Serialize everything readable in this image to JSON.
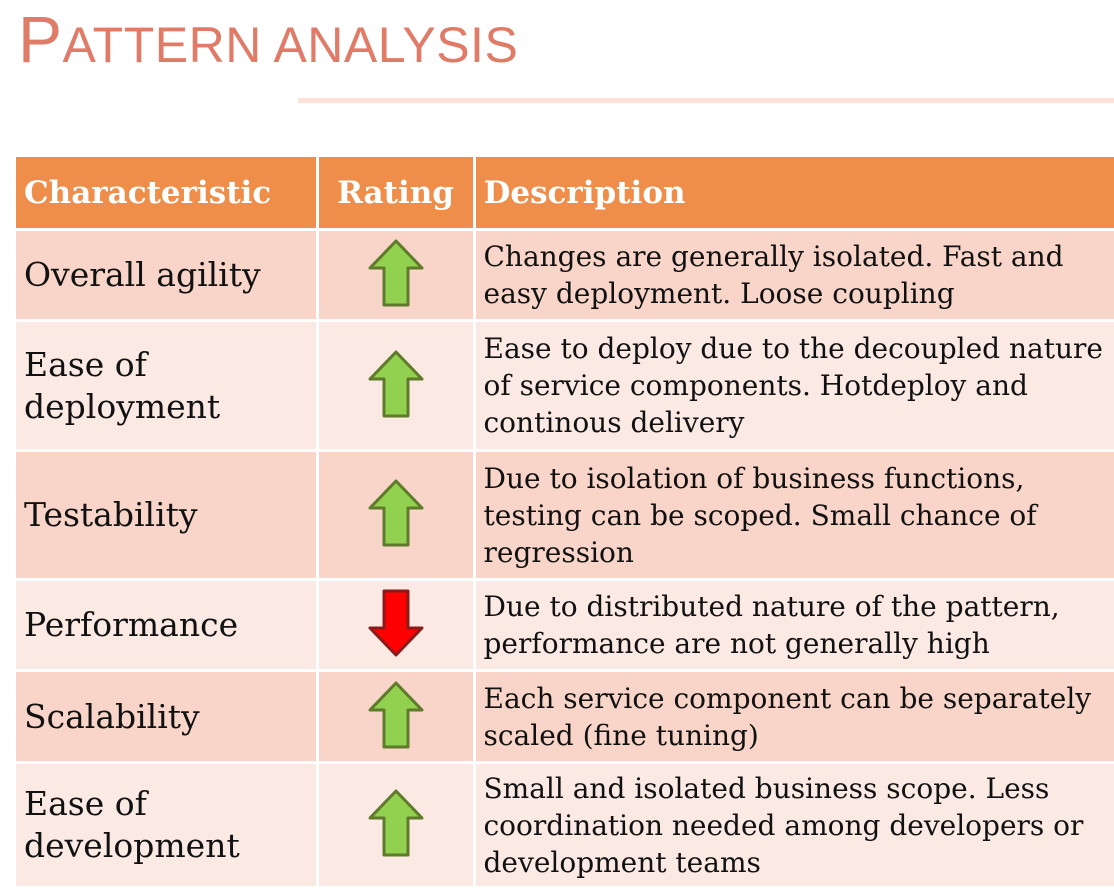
{
  "title": {
    "first": "P",
    "rest": "ATTERN ANALYSIS"
  },
  "table": {
    "headers": [
      "Characteristic",
      "Rating",
      "Description"
    ],
    "rows": [
      {
        "characteristic": "Overall agility",
        "rating": "up",
        "description": "Changes are generally isolated. Fast and easy deployment. Loose coupling"
      },
      {
        "characteristic": "Ease of deployment",
        "rating": "up",
        "description": "Ease to deploy due to the decoupled nature of service components. Hotdeploy and continous delivery"
      },
      {
        "characteristic": "Testability",
        "rating": "up",
        "description": "Due to isolation of business functions, testing can be scoped. Small chance of regression"
      },
      {
        "characteristic": "Performance",
        "rating": "down",
        "description": "Due to distributed nature of the pattern, performance are not generally high"
      },
      {
        "characteristic": "Scalability",
        "rating": "up",
        "description": "Each service component can be separately scaled (fine tuning)"
      },
      {
        "characteristic": "Ease of development",
        "rating": "up",
        "description": "Small and isolated business scope. Less coordination needed among developers or development teams"
      }
    ]
  },
  "colors": {
    "title": "#e07b68",
    "header_bg": "#ee8e4a",
    "row_odd": "#f8d5c8",
    "row_even": "#fbe9e3",
    "arrow_up": "#92d050",
    "arrow_down": "#ff0000"
  },
  "icons": {
    "up": "arrow-up-icon",
    "down": "arrow-down-icon"
  }
}
